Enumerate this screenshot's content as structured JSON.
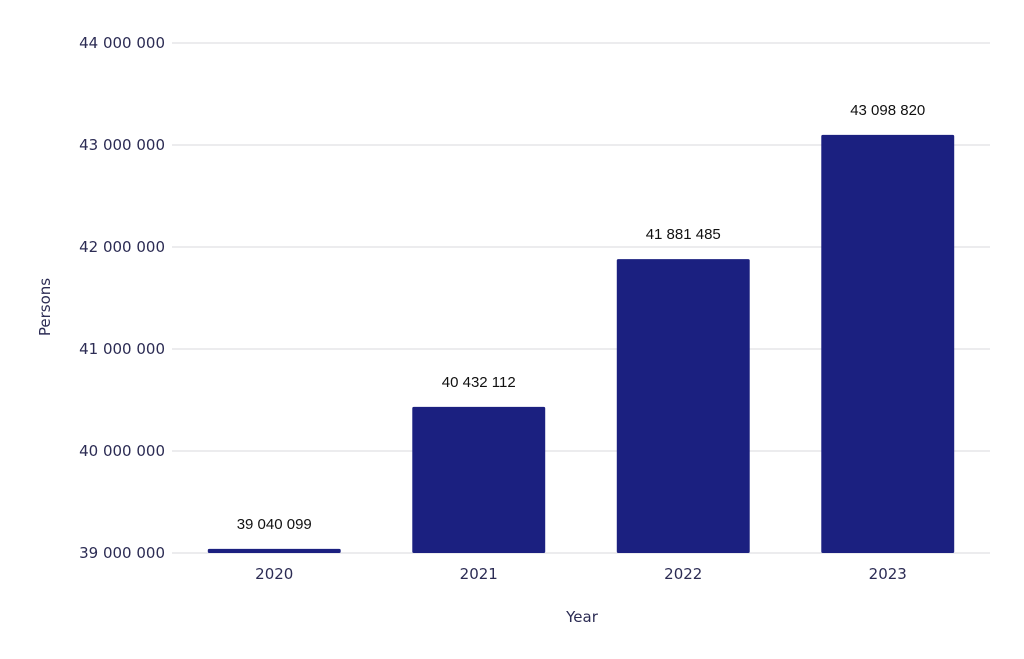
{
  "chart_data": {
    "type": "bar",
    "categories": [
      "2020",
      "2021",
      "2022",
      "2023"
    ],
    "values": [
      39040099,
      40432112,
      41881485,
      43098820
    ],
    "data_labels": [
      "39 040 099",
      "40 432 112",
      "41 881 485",
      "43 098 820"
    ],
    "ylim": [
      39000000,
      44000000
    ],
    "yticks": [
      39000000,
      40000000,
      41000000,
      42000000,
      43000000,
      44000000
    ],
    "ytick_labels": [
      "39 000 000",
      "40 000 000",
      "41 000 000",
      "42 000 000",
      "43 000 000",
      "44 000 000"
    ],
    "xlabel": "Year",
    "ylabel": "Persons",
    "grid": true,
    "bar_color": "#1b2080"
  }
}
